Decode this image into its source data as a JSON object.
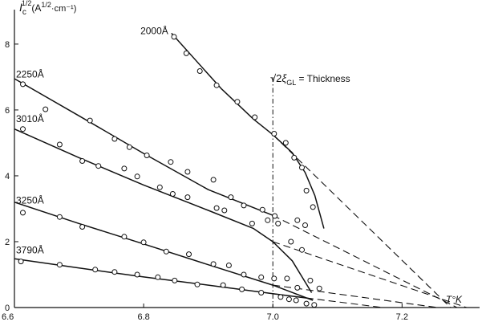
{
  "chart_data": {
    "type": "scatter",
    "title": "",
    "xlabel": "T°K",
    "ylabel": "I_c^{1/2} (A^{1/2} cm^{-1})",
    "ylabel_parts": {
      "main": "I",
      "sub": "c",
      "sup": "1/2",
      "units": "(A",
      "units_sup": "1/2",
      "units_tail": "·cm⁻¹)"
    },
    "xlim": [
      6.6,
      7.32
    ],
    "ylim": [
      0,
      8.9
    ],
    "x_ticks": [
      6.6,
      6.8,
      7.0,
      7.2
    ],
    "x_tick_labels": [
      "6.6",
      "6.8",
      "7.0",
      "7.2"
    ],
    "y_ticks": [
      0,
      2,
      4,
      6,
      8
    ],
    "y_tick_labels": [
      "0",
      "2",
      "4",
      "6",
      "8"
    ],
    "grid": false,
    "annotation": {
      "x": 7.0,
      "label_sqrt": "√2",
      "label_xi": "ξ",
      "label_sub": "GL",
      "label_tail": " = Thickness"
    },
    "series": [
      {
        "name": "2000Å",
        "label_at": [
          6.795,
          8.3
        ],
        "points": [
          [
            6.847,
            8.22
          ],
          [
            6.866,
            7.72
          ],
          [
            6.887,
            7.18
          ],
          [
            6.913,
            6.75
          ],
          [
            6.945,
            6.25
          ],
          [
            6.972,
            5.78
          ],
          [
            7.002,
            5.28
          ],
          [
            7.02,
            5.0
          ],
          [
            7.033,
            4.55
          ],
          [
            7.045,
            4.25
          ],
          [
            7.052,
            3.55
          ],
          [
            7.062,
            3.05
          ]
        ],
        "fit": [
          [
            6.843,
            8.33
          ],
          [
            6.92,
            6.65
          ],
          [
            6.97,
            5.72
          ],
          [
            7.0,
            5.25
          ],
          [
            7.03,
            4.7
          ],
          [
            7.05,
            4.1
          ],
          [
            7.065,
            3.4
          ],
          [
            7.079,
            2.4
          ]
        ],
        "extrap": [
          [
            7.0,
            5.25
          ],
          [
            7.275,
            0.0
          ]
        ]
      },
      {
        "name": "2250Å",
        "label_at": [
          6.6,
          6.98
        ],
        "points": [
          [
            6.613,
            6.78
          ],
          [
            6.648,
            6.02
          ],
          [
            6.717,
            5.68
          ],
          [
            6.755,
            5.12
          ],
          [
            6.778,
            4.87
          ],
          [
            6.805,
            4.62
          ],
          [
            6.842,
            4.42
          ],
          [
            6.868,
            4.12
          ],
          [
            6.908,
            3.88
          ],
          [
            6.935,
            3.35
          ],
          [
            6.955,
            3.1
          ],
          [
            6.984,
            2.97
          ],
          [
            7.003,
            2.78
          ],
          [
            7.038,
            2.65
          ],
          [
            7.05,
            2.5
          ]
        ],
        "fit": [
          [
            6.6,
            6.95
          ],
          [
            6.7,
            5.82
          ],
          [
            6.8,
            4.68
          ],
          [
            6.9,
            3.58
          ],
          [
            7.0,
            2.8
          ]
        ],
        "extrap": [
          [
            7.0,
            2.8
          ],
          [
            7.285,
            0.0
          ]
        ]
      },
      {
        "name": "3010Å",
        "label_at": [
          6.6,
          5.63
        ],
        "points": [
          [
            6.613,
            5.42
          ],
          [
            6.67,
            4.95
          ],
          [
            6.705,
            4.45
          ],
          [
            6.73,
            4.3
          ],
          [
            6.77,
            4.22
          ],
          [
            6.79,
            3.98
          ],
          [
            6.825,
            3.65
          ],
          [
            6.845,
            3.45
          ],
          [
            6.868,
            3.35
          ],
          [
            6.913,
            3.02
          ],
          [
            6.925,
            2.95
          ],
          [
            6.968,
            2.55
          ],
          [
            6.992,
            2.65
          ],
          [
            7.008,
            2.55
          ],
          [
            7.028,
            2.0
          ],
          [
            7.045,
            1.75
          ],
          [
            7.058,
            0.82
          ],
          [
            7.072,
            0.58
          ]
        ],
        "fit": [
          [
            6.6,
            5.42
          ],
          [
            6.7,
            4.55
          ],
          [
            6.8,
            3.72
          ],
          [
            6.9,
            2.95
          ],
          [
            6.97,
            2.4
          ],
          [
            7.0,
            2.0
          ],
          [
            7.03,
            1.42
          ],
          [
            7.06,
            0.45
          ]
        ],
        "extrap": [
          [
            7.0,
            2.0
          ],
          [
            7.3,
            0.0
          ]
        ]
      },
      {
        "name": "3250Å",
        "label_at": [
          6.6,
          3.16
        ],
        "points": [
          [
            6.613,
            2.88
          ],
          [
            6.67,
            2.75
          ],
          [
            6.705,
            2.45
          ],
          [
            6.77,
            2.15
          ],
          [
            6.8,
            1.98
          ],
          [
            6.835,
            1.7
          ],
          [
            6.87,
            1.62
          ],
          [
            6.908,
            1.32
          ],
          [
            6.932,
            1.28
          ],
          [
            6.955,
            1.0
          ],
          [
            6.982,
            0.92
          ],
          [
            7.002,
            0.88
          ],
          [
            7.022,
            0.88
          ],
          [
            7.038,
            0.6
          ]
        ],
        "fit": [
          [
            6.6,
            3.2
          ],
          [
            6.7,
            2.55
          ],
          [
            6.8,
            1.93
          ],
          [
            6.9,
            1.3
          ],
          [
            7.0,
            0.68
          ],
          [
            7.062,
            0.22
          ]
        ],
        "extrap": [
          [
            7.0,
            0.68
          ],
          [
            7.255,
            0.0
          ]
        ]
      },
      {
        "name": "3790Å",
        "label_at": [
          6.6,
          1.65
        ],
        "points": [
          [
            6.61,
            1.4
          ],
          [
            6.67,
            1.3
          ],
          [
            6.725,
            1.15
          ],
          [
            6.755,
            1.08
          ],
          [
            6.79,
            1.0
          ],
          [
            6.822,
            0.92
          ],
          [
            6.848,
            0.82
          ],
          [
            6.883,
            0.7
          ],
          [
            6.923,
            0.68
          ],
          [
            6.952,
            0.55
          ],
          [
            6.982,
            0.45
          ],
          [
            7.012,
            0.32
          ],
          [
            7.025,
            0.25
          ],
          [
            7.036,
            0.22
          ],
          [
            7.052,
            0.12
          ],
          [
            7.064,
            0.08
          ]
        ],
        "fit": [
          [
            6.6,
            1.48
          ],
          [
            6.7,
            1.2
          ],
          [
            6.8,
            0.93
          ],
          [
            6.9,
            0.68
          ],
          [
            7.0,
            0.42
          ],
          [
            7.055,
            0.28
          ]
        ],
        "extrap": [
          [
            7.0,
            0.42
          ],
          [
            7.17,
            0.0
          ]
        ]
      }
    ]
  }
}
